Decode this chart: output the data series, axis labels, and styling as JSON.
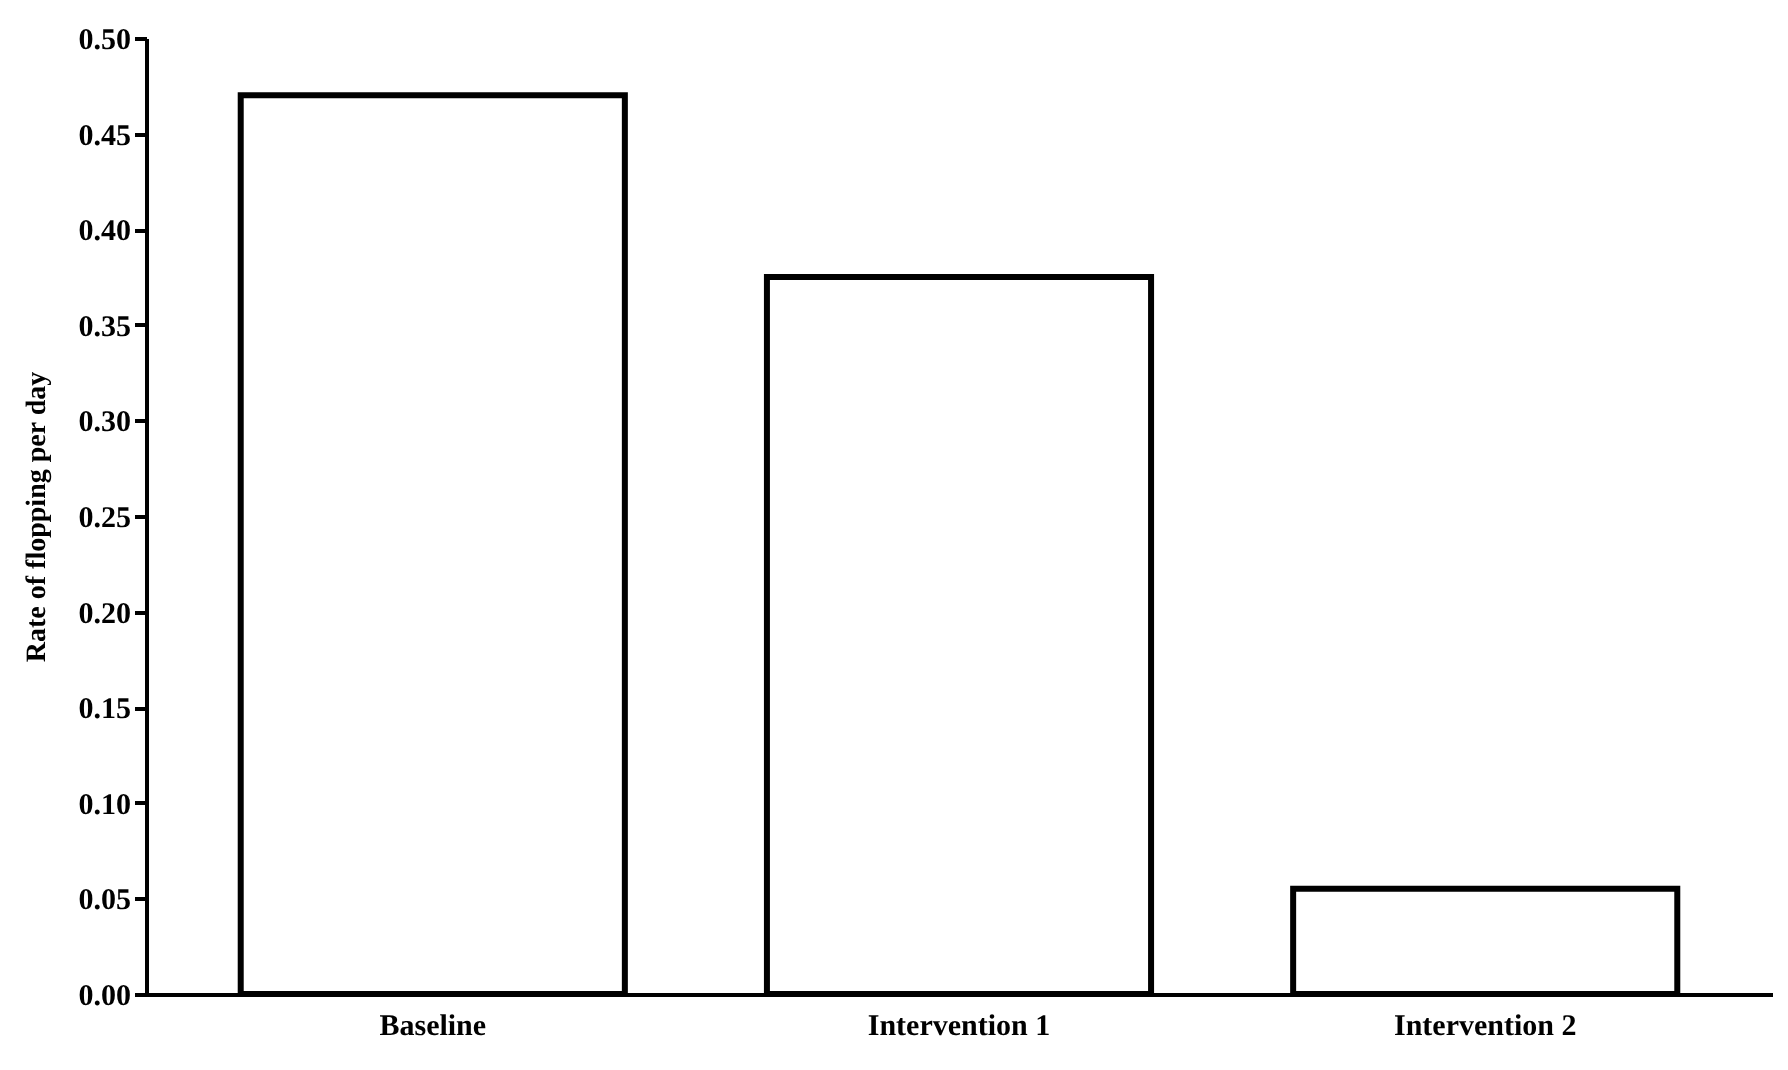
{
  "chart_data": {
    "type": "bar",
    "ylabel": "Rate of flopping per day",
    "categories": [
      "Baseline",
      "Intervention 1",
      "Intervention 2"
    ],
    "values": [
      0.47,
      0.375,
      0.055
    ],
    "color": "#ffffff",
    "ylim": [
      0,
      0.5
    ],
    "yticks": [
      {
        "value": 0,
        "label": "0.00"
      },
      {
        "value": 0.05,
        "label": "0.05"
      },
      {
        "value": 0.1,
        "label": "0.10"
      },
      {
        "value": 0.15,
        "label": "0.15"
      },
      {
        "value": 0.2,
        "label": "0.20"
      },
      {
        "value": 0.25,
        "label": "0.25"
      },
      {
        "value": 0.3,
        "label": "0.30"
      },
      {
        "value": 0.35,
        "label": "0.35"
      },
      {
        "value": 0.4,
        "label": "0.40"
      },
      {
        "value": 0.45,
        "label": "0.45"
      },
      {
        "value": 0.5,
        "label": "0.50"
      }
    ],
    "grid": false
  }
}
